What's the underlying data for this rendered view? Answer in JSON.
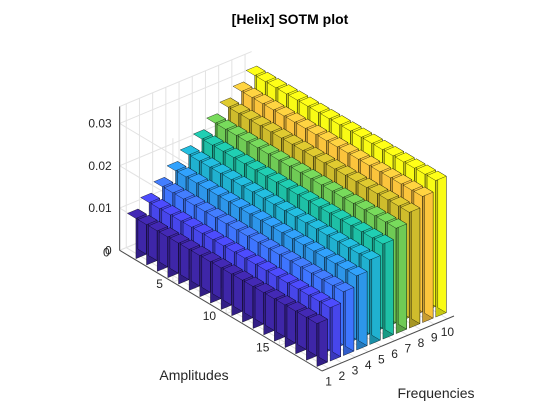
{
  "chart_data": {
    "type": "bar3",
    "title": "[Helix] SOTM plot",
    "xlabel": "Frequencies",
    "ylabel": "Amplitudes",
    "zlabel": "",
    "frequencies": [
      1,
      2,
      3,
      4,
      5,
      6,
      7,
      8,
      9,
      10
    ],
    "amplitudes": [
      1,
      2,
      3,
      4,
      5,
      6,
      7,
      8,
      9,
      10,
      11,
      12,
      13,
      14,
      15,
      16,
      17,
      18
    ],
    "x_ticks": [
      "1",
      "2",
      "3",
      "4",
      "5",
      "6",
      "7",
      "8",
      "9",
      "10"
    ],
    "y_ticks": [
      "0",
      "5",
      "10",
      "15"
    ],
    "y_tick_values": [
      0,
      5,
      10,
      15
    ],
    "z_ticks": [
      "0",
      "0.01",
      "0.02",
      "0.03"
    ],
    "z_tick_values": [
      0,
      0.01,
      0.02,
      0.03
    ],
    "zlim": [
      0,
      0.034
    ],
    "values_formula": "value(f, a) = 0.0095 + 0.00245*(f-1) + 0.00004*(a-1)",
    "value_at_f1_a1": 0.0095,
    "value_at_f10_a1": 0.0316,
    "grid": true,
    "colormap": "parula",
    "color_by": "frequency",
    "colors": [
      "#3e26a8",
      "#4746eb",
      "#3e75ff",
      "#2d96ea",
      "#20b1d0",
      "#1ec0a6",
      "#6fcb55",
      "#cfbc2c",
      "#fbc43c",
      "#f9fb15"
    ]
  }
}
